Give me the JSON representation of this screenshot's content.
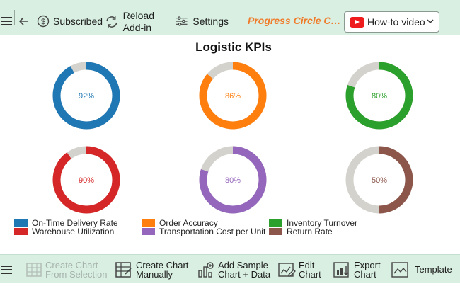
{
  "toolbar": {
    "subscribed_label": "Subscribed",
    "reload_label_line1": "Reload",
    "reload_label_line2": "Add-in",
    "settings_label": "Settings",
    "brand_label": "Progress Circle Ch...",
    "howto_label": "How-to video"
  },
  "chart_data": {
    "type": "progress-circle",
    "title": "Logistic KPIs",
    "remainder_color": "#d4d2cc",
    "series": [
      {
        "name": "On-Time Delivery Rate",
        "value": 92,
        "label": "92%",
        "color": "#1f77b4"
      },
      {
        "name": "Order Accuracy",
        "value": 86,
        "label": "86%",
        "color": "#ff7f0e"
      },
      {
        "name": "Inventory Turnover",
        "value": 80,
        "label": "80%",
        "color": "#2ca02c"
      },
      {
        "name": "Warehouse Utilization",
        "value": 90,
        "label": "90%",
        "color": "#d62728"
      },
      {
        "name": "Transportation Cost per Unit",
        "value": 80,
        "label": "80%",
        "color": "#9467bd"
      },
      {
        "name": "Return Rate",
        "value": 50,
        "label": "50%",
        "color": "#8c564b"
      }
    ],
    "legend_position": "bottom"
  },
  "bottom_toolbar": {
    "create_from_selection_line1": "Create Chart",
    "create_from_selection_line2": "From Selection",
    "create_manually_line1": "Create Chart",
    "create_manually_line2": "Manually",
    "add_sample_line1": "Add Sample",
    "add_sample_line2": "Chart + Data",
    "edit_line1": "Edit",
    "edit_line2": "Chart",
    "export_line1": "Export",
    "export_line2": "Chart",
    "template_label": "Template"
  },
  "colors": {
    "toolbar_bg": "#d8efe2",
    "brand": "#f07b2a",
    "youtube_red": "#ee1c1c"
  }
}
